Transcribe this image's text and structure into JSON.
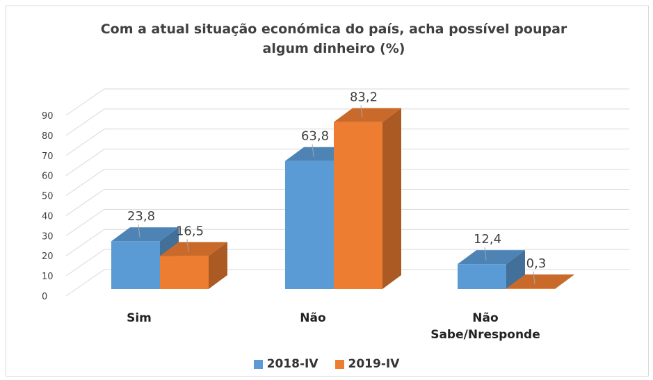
{
  "chart_data": {
    "type": "bar3d",
    "title": "Com a atual situação económica do país, acha possível poupar algum dinheiro (%)",
    "categories": [
      "Sim",
      "Não",
      "Não Sabe/Nresponde"
    ],
    "series": [
      {
        "name": "2018-IV",
        "color": "#5b9bd5",
        "values": [
          23.8,
          63.8,
          12.4
        ],
        "value_labels": [
          "23,8",
          "63,8",
          "12,4"
        ]
      },
      {
        "name": "2019-IV",
        "color": "#ed7d31",
        "values": [
          16.5,
          83.2,
          0.3
        ],
        "value_labels": [
          "16,5",
          "83,2",
          "0,3"
        ]
      }
    ],
    "ylim": [
      0,
      90
    ],
    "yticks": [
      0,
      10,
      20,
      30,
      40,
      50,
      60,
      70,
      80,
      90
    ],
    "grid": true,
    "legend": "bottom"
  }
}
